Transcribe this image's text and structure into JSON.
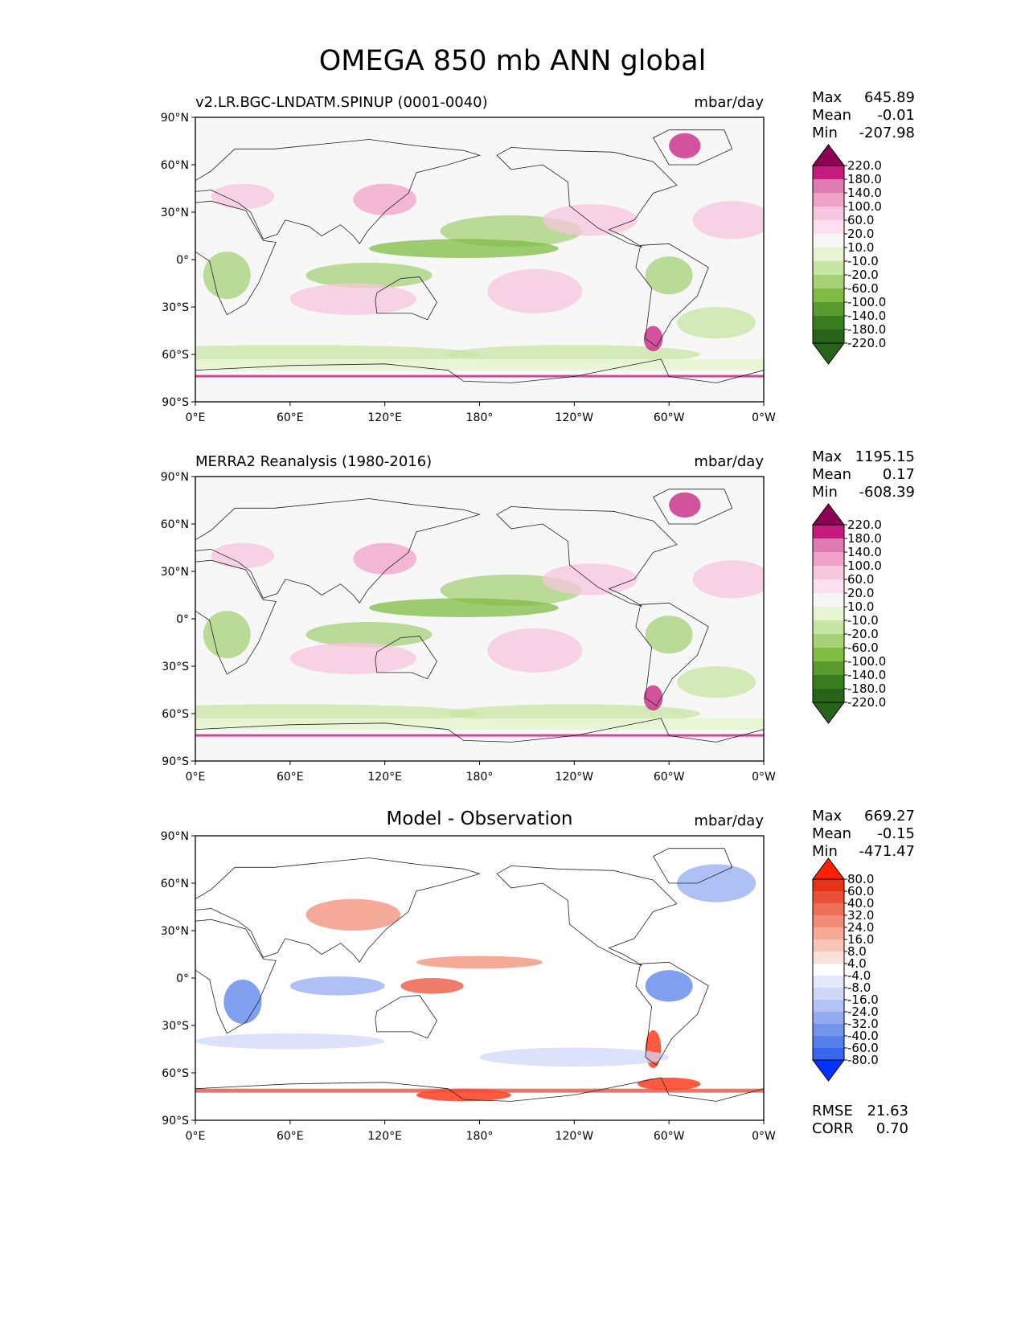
{
  "title": "OMEGA 850 mb ANN global",
  "colors": {
    "seq": [
      "#276419",
      "#3a7d1f",
      "#5a9a2e",
      "#7fbc41",
      "#a6d177",
      "#c7e6a3",
      "#e6f5d0",
      "#f7f7f7",
      "#fde0ef",
      "#f7c6df",
      "#f1a1c8",
      "#e07bb1",
      "#c51b7d",
      "#8e0152"
    ],
    "diff": [
      "#0033ff",
      "#3a66ef",
      "#5580ea",
      "#7595ea",
      "#94abf0",
      "#b2c2f4",
      "#cfd8f7",
      "#e3e8fa",
      "#ffffff",
      "#fbe1da",
      "#f8c6b6",
      "#f6a995",
      "#f28c76",
      "#ee6f57",
      "#ea5038",
      "#e63219",
      "#ff2200"
    ]
  },
  "panels": [
    {
      "id": "model",
      "left_title": "v2.LR.BGC-LNDATM.SPINUP (0001-0040)",
      "center_title": "",
      "units": "mbar/day",
      "stats": {
        "max_label": "Max",
        "max": "645.89",
        "mean_label": "Mean",
        "mean": "-0.01",
        "min_label": "Min",
        "min": "-207.98"
      },
      "colorbar": {
        "levels": [
          "220.0",
          "180.0",
          "140.0",
          "100.0",
          "60.0",
          "20.0",
          "10.0",
          "-10.0",
          "-20.0",
          "-60.0",
          "-100.0",
          "-140.0",
          "-180.0",
          "-220.0"
        ],
        "palette": "seq"
      }
    },
    {
      "id": "obs",
      "left_title": "MERRA2 Reanalysis (1980-2016)",
      "center_title": "",
      "units": "mbar/day",
      "stats": {
        "max_label": "Max",
        "max": "1195.15",
        "mean_label": "Mean",
        "mean": "0.17",
        "min_label": "Min",
        "min": "-608.39"
      },
      "colorbar": {
        "levels": [
          "220.0",
          "180.0",
          "140.0",
          "100.0",
          "60.0",
          "20.0",
          "10.0",
          "-10.0",
          "-20.0",
          "-60.0",
          "-100.0",
          "-140.0",
          "-180.0",
          "-220.0"
        ],
        "palette": "seq"
      }
    },
    {
      "id": "diff",
      "left_title": "",
      "center_title": "Model - Observation",
      "units": "mbar/day",
      "stats": {
        "max_label": "Max",
        "max": "669.27",
        "mean_label": "Mean",
        "mean": "-0.15",
        "min_label": "Min",
        "min": "-471.47"
      },
      "colorbar": {
        "levels": [
          "80.0",
          "60.0",
          "40.0",
          "32.0",
          "24.0",
          "16.0",
          "8.0",
          "4.0",
          "-4.0",
          "-8.0",
          "-16.0",
          "-24.0",
          "-32.0",
          "-40.0",
          "-60.0",
          "-80.0"
        ],
        "palette": "diff"
      },
      "metrics": {
        "rmse_label": "RMSE",
        "rmse": "21.63",
        "corr_label": "CORR",
        "corr": "0.70"
      }
    }
  ],
  "axes": {
    "lon_ticks": [
      "0°E",
      "60°E",
      "120°E",
      "180°",
      "120°W",
      "60°W",
      "0°W"
    ],
    "lat_ticks": [
      "90°N",
      "60°N",
      "30°N",
      "0°",
      "30°S",
      "60°S",
      "90°S"
    ]
  },
  "chart_data": [
    {
      "type": "heatmap",
      "title": "v2.LR.BGC-LNDATM.SPINUP (0001-0040)",
      "units": "mbar/day",
      "x_range": [
        0,
        360
      ],
      "y_range": [
        -90,
        90
      ],
      "max": 645.89,
      "mean": -0.01,
      "min": -207.98,
      "levels": [
        -220,
        -180,
        -140,
        -100,
        -60,
        -20,
        -10,
        10,
        20,
        60,
        100,
        140,
        180,
        220
      ]
    },
    {
      "type": "heatmap",
      "title": "MERRA2 Reanalysis (1980-2016)",
      "units": "mbar/day",
      "x_range": [
        0,
        360
      ],
      "y_range": [
        -90,
        90
      ],
      "max": 1195.15,
      "mean": 0.17,
      "min": -608.39,
      "levels": [
        -220,
        -180,
        -140,
        -100,
        -60,
        -20,
        -10,
        10,
        20,
        60,
        100,
        140,
        180,
        220
      ]
    },
    {
      "type": "heatmap",
      "title": "Model - Observation",
      "units": "mbar/day",
      "x_range": [
        0,
        360
      ],
      "y_range": [
        -90,
        90
      ],
      "max": 669.27,
      "mean": -0.15,
      "min": -471.47,
      "rmse": 21.63,
      "corr": 0.7,
      "levels": [
        -80,
        -60,
        -40,
        -32,
        -24,
        -16,
        -8,
        -4,
        4,
        8,
        16,
        24,
        32,
        40,
        60,
        80
      ]
    }
  ]
}
